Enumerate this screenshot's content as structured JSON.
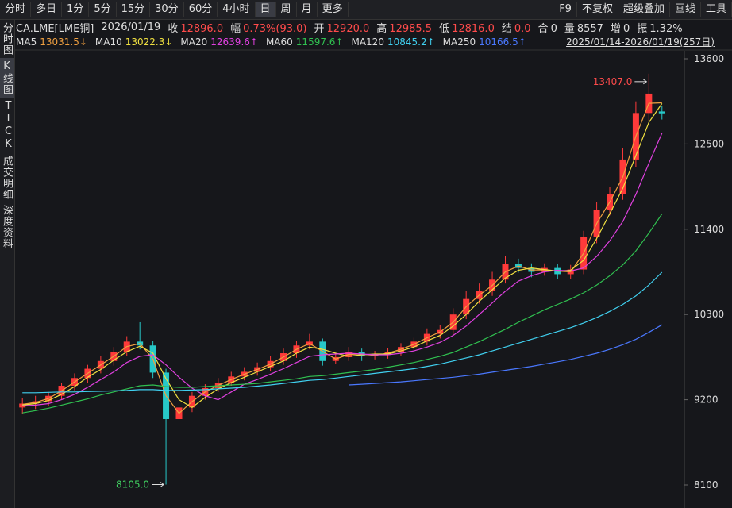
{
  "toolbar": {
    "periods": [
      "分时",
      "多日",
      "1分",
      "5分",
      "15分",
      "30分",
      "60分",
      "4小时",
      "日",
      "周",
      "月",
      "更多"
    ],
    "active_period": "日",
    "tools": [
      "F9",
      "不复权",
      "超级叠加",
      "画线",
      "工具"
    ]
  },
  "sidebar": {
    "tabs": [
      "分时图",
      "K线图",
      "TICK",
      "成交明细",
      "深度资料"
    ],
    "active_tab": "K线图"
  },
  "quote": {
    "symbol": "CA.LME[LME铜]",
    "date": "2026/01/19",
    "fields": [
      {
        "label": "收",
        "value": "12896.0",
        "color": "#ff4b4b"
      },
      {
        "label": "幅",
        "value": "0.73%(93.0)",
        "color": "#ff4b4b"
      },
      {
        "label": "开",
        "value": "12920.0",
        "color": "#ff4b4b"
      },
      {
        "label": "高",
        "value": "12985.5",
        "color": "#ff4b4b"
      },
      {
        "label": "低",
        "value": "12816.0",
        "color": "#ff4b4b"
      },
      {
        "label": "结",
        "value": "0.0",
        "color": "#ff4b4b"
      },
      {
        "label": "合",
        "value": "0",
        "color": "#dddddd"
      },
      {
        "label": "量",
        "value": "8557",
        "color": "#dddddd"
      },
      {
        "label": "增",
        "value": "0",
        "color": "#dddddd"
      },
      {
        "label": "振",
        "value": "1.32%",
        "color": "#dddddd"
      }
    ]
  },
  "range_label": "2025/01/14-2026/01/19(257日)",
  "chart_data": {
    "type": "candlestick",
    "up_color": "#ff3a3a",
    "down_color": "#27c8c8",
    "ylim": [
      8100,
      13600
    ],
    "yticks": [
      13600,
      12500,
      11400,
      10300,
      9200,
      8100
    ],
    "open": [
      9100,
      9150,
      9180,
      9250,
      9380,
      9480,
      9600,
      9700,
      9820,
      9950,
      9900,
      9550,
      8950,
      9100,
      9250,
      9350,
      9420,
      9500,
      9560,
      9620,
      9700,
      9800,
      9900,
      9950,
      9700,
      9750,
      9820,
      9760,
      9780,
      9820,
      9880,
      9950,
      10050,
      10100,
      10300,
      10500,
      10600,
      10750,
      10950,
      10900,
      10850,
      10900,
      10820,
      10880,
      11300,
      11650,
      11850,
      12300,
      12900,
      12920
    ],
    "high": [
      9220,
      9250,
      9300,
      9420,
      9540,
      9650,
      9760,
      9880,
      10020,
      10200,
      9960,
      9600,
      9180,
      9300,
      9400,
      9480,
      9560,
      9620,
      9680,
      9760,
      9860,
      9960,
      10050,
      9990,
      9800,
      9880,
      9860,
      9830,
      9870,
      9930,
      10000,
      10120,
      10160,
      10380,
      10600,
      10700,
      10850,
      11050,
      11020,
      10960,
      10960,
      10950,
      10940,
      11380,
      11750,
      11950,
      12450,
      13050,
      13407,
      12985.5
    ],
    "low": [
      9020,
      9080,
      9120,
      9200,
      9320,
      9420,
      9540,
      9640,
      9760,
      9850,
      9480,
      8105,
      8900,
      9040,
      9200,
      9300,
      9380,
      9450,
      9510,
      9570,
      9650,
      9740,
      9850,
      9640,
      9660,
      9700,
      9700,
      9720,
      9730,
      9770,
      9830,
      9900,
      9990,
      10040,
      10240,
      10440,
      10540,
      10700,
      10840,
      10780,
      10800,
      10760,
      10760,
      10820,
      11220,
      11580,
      11780,
      12200,
      12800,
      12816
    ],
    "close": [
      9150,
      9180,
      9250,
      9380,
      9480,
      9600,
      9700,
      9820,
      9950,
      9900,
      9550,
      8950,
      9100,
      9250,
      9350,
      9420,
      9500,
      9560,
      9620,
      9700,
      9800,
      9900,
      9950,
      9700,
      9750,
      9820,
      9760,
      9780,
      9820,
      9880,
      9950,
      10050,
      10100,
      10300,
      10500,
      10600,
      10750,
      10950,
      10900,
      10850,
      10900,
      10820,
      10880,
      11300,
      11650,
      11850,
      12300,
      12900,
      13150,
      12896
    ],
    "series": [
      {
        "name": "MA5",
        "color": "#f0a040",
        "legend_label": "13031.5↓",
        "values": [
          9140,
          9165,
          9215,
          9315,
          9430,
          9540,
          9650,
          9760,
          9885,
          9925,
          9725,
          9250,
          9025,
          9175,
          9300,
          9385,
          9460,
          9530,
          9590,
          9660,
          9750,
          9850,
          9925,
          9825,
          9725,
          9785,
          9790,
          9770,
          9800,
          9850,
          9915,
          10000,
          10075,
          10200,
          10400,
          10550,
          10675,
          10850,
          10925,
          10875,
          10875,
          10860,
          10850,
          11090,
          11475,
          11750,
          12075,
          12600,
          13025,
          13031.5
        ]
      },
      {
        "name": "MA10",
        "color": "#f0e040",
        "legend_label": "13022.3↓",
        "values": [
          9130,
          9150,
          9190,
          9270,
          9370,
          9490,
          9590,
          9710,
          9820,
          9890,
          9800,
          9470,
          9200,
          9100,
          9230,
          9340,
          9420,
          9490,
          9560,
          9630,
          9700,
          9800,
          9880,
          9850,
          9800,
          9760,
          9780,
          9790,
          9790,
          9830,
          9880,
          9960,
          10030,
          10150,
          10300,
          10470,
          10620,
          10770,
          10870,
          10900,
          10880,
          10860,
          10870,
          11000,
          11280,
          11600,
          11930,
          12350,
          12780,
          13022.3
        ]
      },
      {
        "name": "MA20",
        "color": "#e040e0",
        "legend_label": "12639.6↑",
        "values": [
          9120,
          9130,
          9150,
          9200,
          9270,
          9360,
          9460,
          9560,
          9680,
          9760,
          9780,
          9650,
          9490,
          9350,
          9250,
          9200,
          9300,
          9400,
          9460,
          9530,
          9600,
          9680,
          9760,
          9780,
          9790,
          9800,
          9790,
          9780,
          9780,
          9800,
          9830,
          9880,
          9940,
          10030,
          10150,
          10300,
          10450,
          10600,
          10730,
          10800,
          10850,
          10870,
          10860,
          10900,
          11050,
          11250,
          11500,
          11850,
          12250,
          12639.6
        ]
      },
      {
        "name": "MA60",
        "color": "#30c050",
        "legend_label": "11597.6↑",
        "values": [
          9030,
          9060,
          9090,
          9130,
          9170,
          9210,
          9260,
          9300,
          9340,
          9380,
          9390,
          9370,
          9360,
          9360,
          9370,
          9380,
          9390,
          9400,
          9410,
          9430,
          9450,
          9470,
          9500,
          9510,
          9530,
          9550,
          9570,
          9590,
          9620,
          9650,
          9680,
          9720,
          9760,
          9810,
          9880,
          9950,
          10030,
          10110,
          10200,
          10280,
          10360,
          10430,
          10500,
          10580,
          10680,
          10800,
          10940,
          11120,
          11350,
          11597.6
        ]
      },
      {
        "name": "MA120",
        "color": "#40d0f0",
        "legend_label": "10845.2↑",
        "values": [
          9290,
          9290,
          9295,
          9300,
          9300,
          9305,
          9310,
          9315,
          9320,
          9330,
          9330,
          9320,
          9320,
          9325,
          9330,
          9340,
          9350,
          9360,
          9375,
          9390,
          9410,
          9430,
          9450,
          9460,
          9480,
          9500,
          9520,
          9540,
          9560,
          9580,
          9600,
          9630,
          9660,
          9700,
          9740,
          9780,
          9830,
          9880,
          9930,
          9980,
          10030,
          10080,
          10130,
          10190,
          10260,
          10340,
          10430,
          10540,
          10680,
          10845.2
        ]
      },
      {
        "name": "MA250",
        "color": "#4a78ff",
        "legend_label": "10166.5↑",
        "values": [
          null,
          null,
          null,
          null,
          null,
          null,
          null,
          null,
          null,
          null,
          null,
          null,
          null,
          null,
          null,
          null,
          null,
          null,
          null,
          null,
          null,
          null,
          null,
          null,
          null,
          9390,
          9400,
          9410,
          9420,
          9430,
          9445,
          9460,
          9475,
          9490,
          9510,
          9530,
          9555,
          9580,
          9605,
          9630,
          9660,
          9690,
          9720,
          9760,
          9800,
          9850,
          9910,
          9980,
          10070,
          10166.5
        ]
      }
    ],
    "annotations": [
      {
        "value": 13407,
        "label": "13407.0",
        "color": "#ff4b4b"
      },
      {
        "value": 8105,
        "label": "8105.0",
        "color": "#40d060"
      }
    ]
  }
}
